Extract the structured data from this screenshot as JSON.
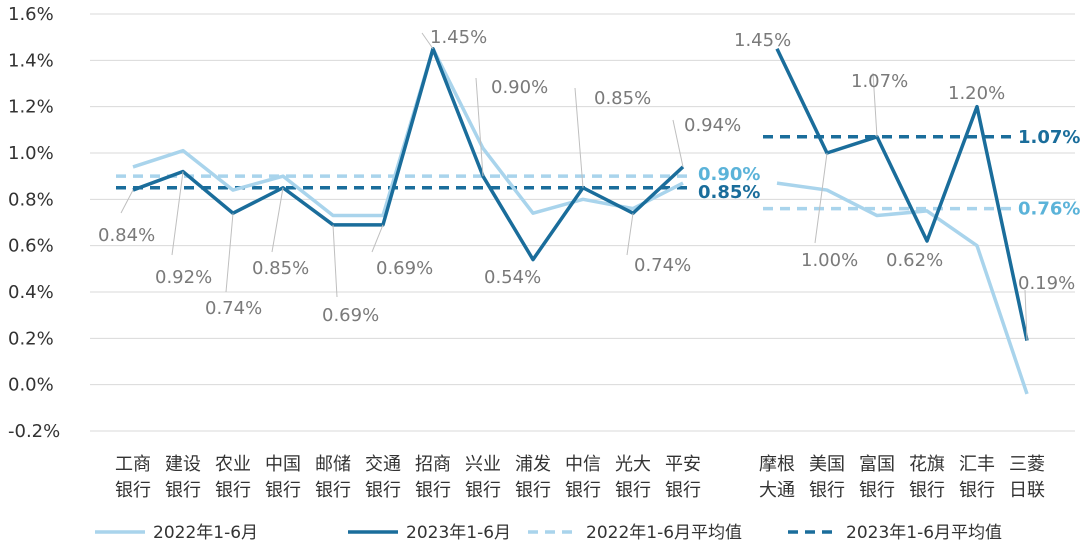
{
  "chart_data": {
    "type": "line",
    "title": "",
    "xlabel": "",
    "ylabel": "",
    "ylim": [
      -0.2,
      1.6
    ],
    "y_ticks": [
      "-0.2%",
      "0.0%",
      "0.2%",
      "0.4%",
      "0.6%",
      "0.8%",
      "1.0%",
      "1.2%",
      "1.4%",
      "1.6%"
    ],
    "y_tick_values": [
      -0.2,
      0.0,
      0.2,
      0.4,
      0.6,
      0.8,
      1.0,
      1.2,
      1.4,
      1.6
    ],
    "grid": "horizontal",
    "legend_position": "bottom",
    "colors": {
      "light": "#a9d4ec",
      "dark": "#1a6d9b",
      "light_label": "#5bb3d9",
      "dark_label": "#1a6d9b",
      "grid": "#d9d9d9",
      "label_gray": "#7a7a7a"
    },
    "groups": [
      {
        "categories": [
          [
            "工商",
            "银行"
          ],
          [
            "建设",
            "银行"
          ],
          [
            "农业",
            "银行"
          ],
          [
            "中国",
            "银行"
          ],
          [
            "邮储",
            "银行"
          ],
          [
            "交通",
            "银行"
          ],
          [
            "招商",
            "银行"
          ],
          [
            "兴业",
            "银行"
          ],
          [
            "浦发",
            "银行"
          ],
          [
            "中信",
            "银行"
          ],
          [
            "光大",
            "银行"
          ],
          [
            "平安",
            "银行"
          ]
        ],
        "series_2022": [
          0.94,
          1.01,
          0.84,
          0.9,
          0.73,
          0.73,
          1.45,
          1.02,
          0.74,
          0.8,
          0.76,
          0.87
        ],
        "series_2023": [
          0.84,
          0.92,
          0.74,
          0.85,
          0.69,
          0.69,
          1.45,
          0.9,
          0.54,
          0.85,
          0.74,
          0.94
        ],
        "labels_2023": [
          "0.84%",
          "0.92%",
          "0.74%",
          "0.85%",
          "0.69%",
          "0.69%",
          "1.45%",
          "0.90%",
          "0.54%",
          "0.85%",
          "0.74%",
          "0.94%"
        ],
        "avg_2022": 0.9,
        "avg_2023": 0.85,
        "avg_2022_label": "0.90%",
        "avg_2023_label": "0.85%"
      },
      {
        "categories": [
          [
            "摩根",
            "大通"
          ],
          [
            "美国",
            "银行"
          ],
          [
            "富国",
            "银行"
          ],
          [
            "花旗",
            "银行"
          ],
          [
            "汇丰",
            "银行"
          ],
          [
            "三菱",
            "日联"
          ]
        ],
        "series_2022": [
          0.87,
          0.84,
          0.73,
          0.75,
          0.6,
          -0.04
        ],
        "series_2023": [
          1.45,
          1.0,
          1.07,
          0.62,
          1.2,
          0.19
        ],
        "labels_2023": [
          "1.45%",
          "1.00%",
          "1.07%",
          "0.62%",
          "1.20%",
          "0.19%"
        ],
        "avg_2022": 0.76,
        "avg_2023": 1.07,
        "avg_2022_label": "0.76%",
        "avg_2023_label": "1.07%"
      }
    ],
    "legend": [
      {
        "name": "2022年1-6月",
        "style": "solid-light"
      },
      {
        "name": "2023年1-6月",
        "style": "solid-dark"
      },
      {
        "name": "2022年1-6月平均值",
        "style": "dashed-light"
      },
      {
        "name": "2023年1-6月平均值",
        "style": "dashed-dark"
      }
    ]
  }
}
